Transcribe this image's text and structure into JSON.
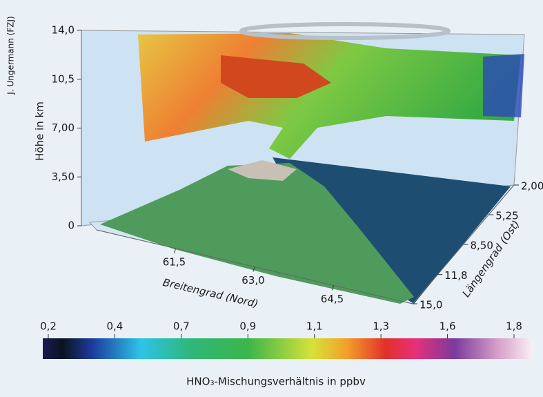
{
  "chart_data": {
    "type": "surface3d",
    "credit": "J. Ungermann (FZJ)",
    "zlabel": "Höhe in km",
    "xlabel": "Breitengrad (Nord)",
    "ylabel": "Längengrad (Ost)",
    "zlim": [
      0,
      14
    ],
    "zticks": [
      0,
      {
        "value": 3.5,
        "label": "3,50"
      },
      {
        "value": 7,
        "label": "7,00"
      },
      {
        "value": 10.5,
        "label": "10,5"
      },
      {
        "value": 14,
        "label": "14,0"
      }
    ],
    "xlim": [
      60,
      66
    ],
    "xticks": [
      {
        "value": 61.5,
        "label": "61,5"
      },
      {
        "value": 63,
        "label": "63,0"
      },
      {
        "value": 64.5,
        "label": "64,5"
      }
    ],
    "ylim": [
      2,
      15
    ],
    "yticks": [
      {
        "value": 2,
        "label": "2,00"
      },
      {
        "value": 5.25,
        "label": "5,25"
      },
      {
        "value": 8.5,
        "label": "8,50"
      },
      {
        "value": 11.8,
        "label": "11,8"
      },
      {
        "value": 15,
        "label": "15,0"
      }
    ],
    "colorbar": {
      "label": "HNO₃-Mischungsverhältnis in ppbv",
      "ticks": [
        {
          "value": 0.2,
          "label": "0,2"
        },
        {
          "value": 0.4,
          "label": "0,4"
        },
        {
          "value": 0.7,
          "label": "0,7"
        },
        {
          "value": 0.9,
          "label": "0,9"
        },
        {
          "value": 1.1,
          "label": "1,1"
        },
        {
          "value": 1.3,
          "label": "1,3"
        },
        {
          "value": 1.6,
          "label": "1,6"
        },
        {
          "value": 1.8,
          "label": "1,8"
        }
      ]
    }
  }
}
